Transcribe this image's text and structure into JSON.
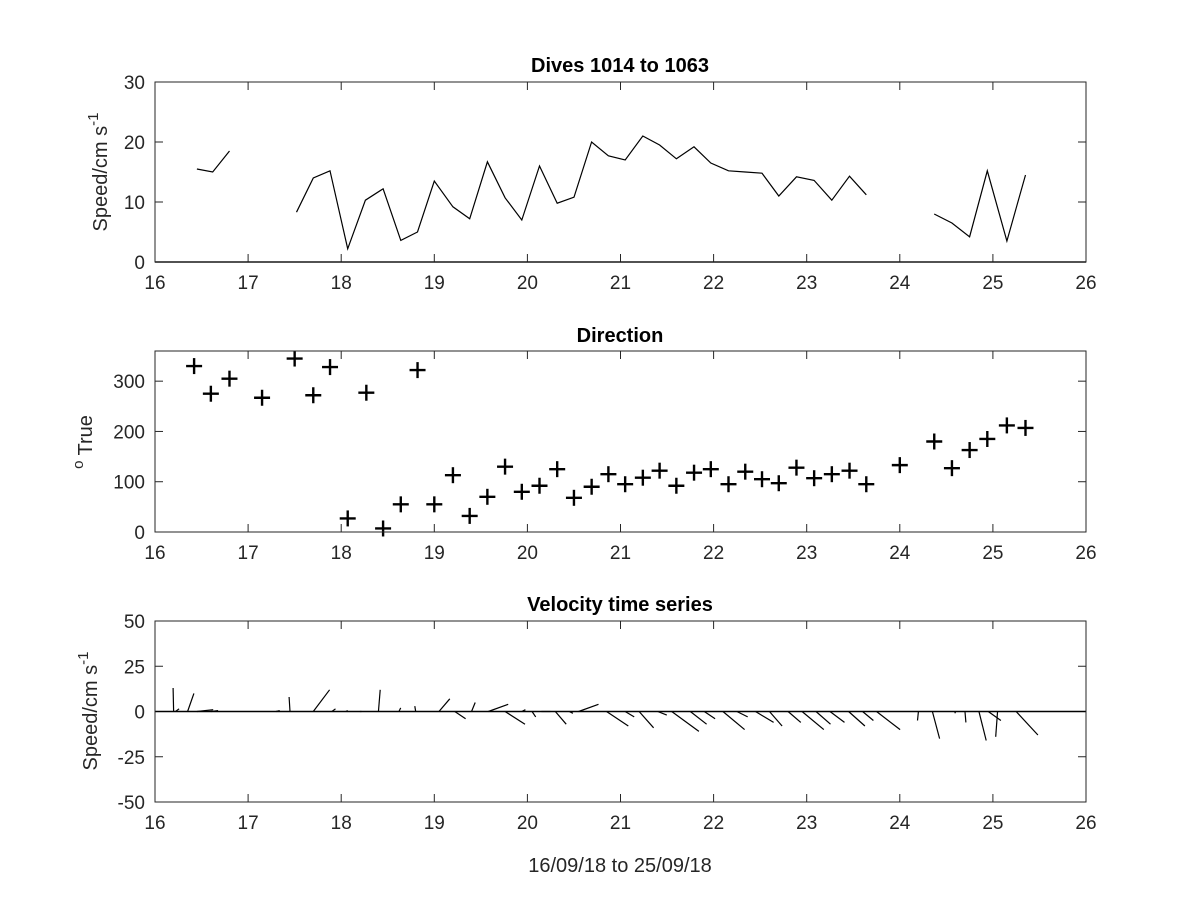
{
  "chart_data": [
    {
      "type": "line",
      "title": "Dives 1014 to 1063",
      "ylabel_main": "Speed/cm s",
      "ylabel_sup": "-1",
      "xlim": [
        16,
        26
      ],
      "ylim": [
        0,
        30
      ],
      "x_ticks": [
        "16",
        "17",
        "18",
        "19",
        "20",
        "21",
        "22",
        "23",
        "24",
        "25",
        "26"
      ],
      "y_ticks": [
        "0",
        "10",
        "20",
        "30"
      ],
      "segments": [
        [
          [
            16.45,
            15.5
          ],
          [
            16.62,
            15.0
          ],
          [
            16.8,
            18.5
          ]
        ],
        [
          [
            17.52,
            8.3
          ],
          [
            17.7,
            14.0
          ],
          [
            17.88,
            15.2
          ],
          [
            18.07,
            2.2
          ],
          [
            18.26,
            10.3
          ],
          [
            18.45,
            12.2
          ],
          [
            18.64,
            3.6
          ],
          [
            18.82,
            5.0
          ],
          [
            19.0,
            13.5
          ],
          [
            19.2,
            9.2
          ],
          [
            19.38,
            7.2
          ],
          [
            19.57,
            16.7
          ],
          [
            19.76,
            10.7
          ],
          [
            19.94,
            7.0
          ],
          [
            20.13,
            16.0
          ],
          [
            20.32,
            9.8
          ],
          [
            20.5,
            10.8
          ],
          [
            20.69,
            20.0
          ],
          [
            20.87,
            17.7
          ],
          [
            21.05,
            17.0
          ],
          [
            21.24,
            21.0
          ],
          [
            21.42,
            19.5
          ],
          [
            21.6,
            17.2
          ],
          [
            21.79,
            19.2
          ],
          [
            21.97,
            16.5
          ],
          [
            22.16,
            15.2
          ],
          [
            22.34,
            15.0
          ],
          [
            22.52,
            14.8
          ],
          [
            22.7,
            11.0
          ],
          [
            22.89,
            14.2
          ],
          [
            23.08,
            13.6
          ],
          [
            23.27,
            10.3
          ],
          [
            23.46,
            14.3
          ],
          [
            23.64,
            11.2
          ]
        ],
        [
          [
            24.37,
            8.0
          ],
          [
            24.56,
            6.5
          ],
          [
            24.75,
            4.2
          ],
          [
            24.94,
            15.2
          ],
          [
            25.15,
            3.5
          ],
          [
            25.35,
            14.5
          ]
        ]
      ]
    },
    {
      "type": "scatter",
      "title": "Direction",
      "ylabel_main": "True",
      "ylabel_sup": "o",
      "xlim": [
        16,
        26
      ],
      "ylim": [
        0,
        360
      ],
      "x_ticks": [
        "16",
        "17",
        "18",
        "19",
        "20",
        "21",
        "22",
        "23",
        "24",
        "25",
        "26"
      ],
      "y_ticks": [
        "0",
        "100",
        "200",
        "300"
      ],
      "points": [
        [
          16.42,
          330
        ],
        [
          16.6,
          275
        ],
        [
          16.8,
          305
        ],
        [
          17.15,
          267
        ],
        [
          17.5,
          345
        ],
        [
          17.7,
          272
        ],
        [
          17.88,
          328
        ],
        [
          18.27,
          277
        ],
        [
          18.82,
          322
        ],
        [
          18.07,
          27
        ],
        [
          18.45,
          7
        ],
        [
          18.64,
          55
        ],
        [
          19.0,
          55
        ],
        [
          19.2,
          113
        ],
        [
          19.38,
          32
        ],
        [
          19.57,
          70
        ],
        [
          19.76,
          130
        ],
        [
          19.94,
          80
        ],
        [
          20.13,
          92
        ],
        [
          20.32,
          125
        ],
        [
          20.5,
          68
        ],
        [
          20.69,
          90
        ],
        [
          20.87,
          115
        ],
        [
          21.05,
          95
        ],
        [
          21.24,
          108
        ],
        [
          21.42,
          122
        ],
        [
          21.6,
          92
        ],
        [
          21.79,
          118
        ],
        [
          21.97,
          125
        ],
        [
          22.16,
          95
        ],
        [
          22.34,
          120
        ],
        [
          22.52,
          105
        ],
        [
          22.7,
          97
        ],
        [
          22.89,
          128
        ],
        [
          23.08,
          107
        ],
        [
          23.27,
          115
        ],
        [
          23.46,
          122
        ],
        [
          23.64,
          95
        ],
        [
          24.0,
          133
        ],
        [
          24.37,
          180
        ],
        [
          24.56,
          127
        ],
        [
          24.75,
          163
        ],
        [
          24.94,
          185
        ],
        [
          25.15,
          212
        ],
        [
          25.35,
          207
        ]
      ]
    },
    {
      "type": "quiver",
      "title": "Velocity time series",
      "ylabel_main": "Speed/cm s",
      "ylabel_sup": "-1",
      "xlabel": "16/09/18 to 25/09/18",
      "xlim": [
        16,
        26
      ],
      "ylim": [
        -50,
        50
      ],
      "x_ticks": [
        "16",
        "17",
        "18",
        "19",
        "20",
        "21",
        "22",
        "23",
        "24",
        "25",
        "26"
      ],
      "y_ticks": [
        "-50",
        "-25",
        "0",
        "25",
        "50"
      ],
      "vectors": [
        [
          16.2,
          -0.3,
          13
        ],
        [
          16.22,
          2.0,
          1.5
        ],
        [
          16.35,
          3.5,
          10
        ],
        [
          16.45,
          9,
          1
        ],
        [
          16.6,
          4,
          0.5
        ],
        [
          17.3,
          2,
          0.5
        ],
        [
          17.45,
          -0.5,
          8
        ],
        [
          17.7,
          9,
          12
        ],
        [
          17.9,
          2,
          1.5
        ],
        [
          18.05,
          1,
          0.5
        ],
        [
          18.2,
          1,
          0
        ],
        [
          18.4,
          1,
          12
        ],
        [
          18.62,
          1,
          2
        ],
        [
          18.8,
          -0.5,
          3
        ],
        [
          19.05,
          6,
          7
        ],
        [
          19.22,
          6,
          -4
        ],
        [
          19.4,
          2,
          5
        ],
        [
          19.58,
          11,
          4
        ],
        [
          19.76,
          11,
          -7
        ],
        [
          19.94,
          2,
          1
        ],
        [
          20.05,
          2,
          -3
        ],
        [
          20.15,
          5,
          0
        ],
        [
          20.3,
          6,
          -7
        ],
        [
          20.45,
          2,
          -1
        ],
        [
          20.55,
          11,
          4
        ],
        [
          20.85,
          12,
          -8
        ],
        [
          21.05,
          5,
          -3
        ],
        [
          21.2,
          8,
          -9
        ],
        [
          21.4,
          5,
          -2
        ],
        [
          21.55,
          15,
          -11
        ],
        [
          21.75,
          9,
          -7
        ],
        [
          21.9,
          6,
          -4
        ],
        [
          22.1,
          12,
          -10
        ],
        [
          22.25,
          6,
          -3
        ],
        [
          22.45,
          10,
          -6
        ],
        [
          22.6,
          7,
          -8
        ],
        [
          22.8,
          7,
          -6
        ],
        [
          22.95,
          12,
          -10
        ],
        [
          23.1,
          8,
          -7
        ],
        [
          23.25,
          8,
          -6
        ],
        [
          23.45,
          9,
          -8
        ],
        [
          23.6,
          6,
          -5
        ],
        [
          23.75,
          13,
          -10
        ],
        [
          24.2,
          -0.5,
          -5
        ],
        [
          24.35,
          4,
          -15
        ],
        [
          24.6,
          -0.5,
          -1
        ],
        [
          24.7,
          0.5,
          -6
        ],
        [
          24.85,
          4,
          -16
        ],
        [
          24.95,
          7,
          -5
        ],
        [
          25.05,
          -1,
          -14
        ],
        [
          25.25,
          12,
          -13
        ]
      ]
    }
  ]
}
